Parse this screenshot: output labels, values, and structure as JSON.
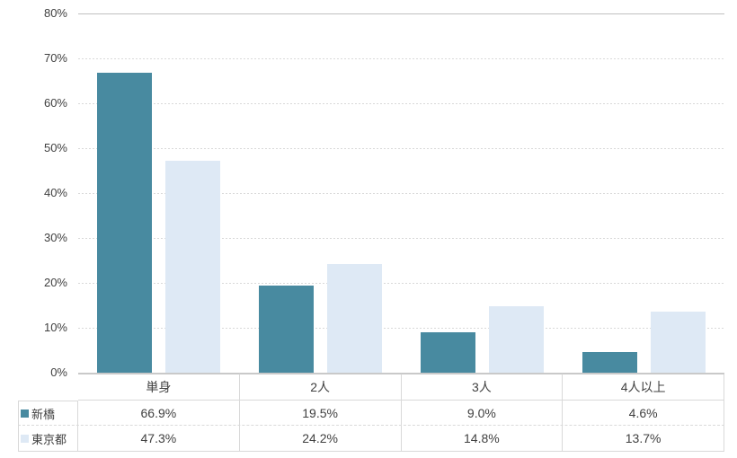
{
  "chart_data": {
    "type": "bar",
    "categories": [
      "単身",
      "2人",
      "3人",
      "4人以上"
    ],
    "series": [
      {
        "name": "新橋",
        "color": "#488AA0",
        "values": [
          66.9,
          19.5,
          9.0,
          4.6
        ],
        "labels": [
          "66.9%",
          "19.5%",
          "9.0%",
          "4.6%"
        ]
      },
      {
        "name": "東京都",
        "color": "#DEE9F5",
        "values": [
          47.3,
          24.2,
          14.8,
          13.7
        ],
        "labels": [
          "47.3%",
          "24.2%",
          "14.8%",
          "13.7%"
        ]
      }
    ],
    "ylim": [
      0,
      80
    ],
    "yticks": [
      "80%",
      "70%",
      "60%",
      "50%",
      "40%",
      "30%",
      "20%",
      "10%",
      "0%"
    ],
    "grid": "horizontal-dashed",
    "legend_position": "table-left",
    "xlabel": "",
    "ylabel": ""
  },
  "colors": {
    "grid": "#D9D9D9",
    "plot_top_line": "#C0C0C0",
    "baseline": "#C9C9C9",
    "table_border": "#D9D9D9",
    "text": "#404040"
  }
}
